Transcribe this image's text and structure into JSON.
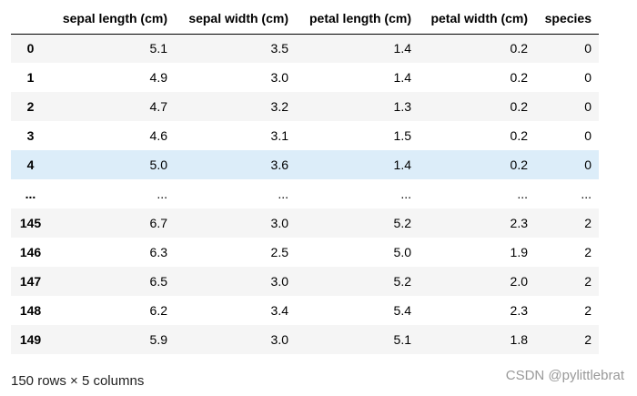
{
  "table": {
    "columns": [
      "",
      "sepal length (cm)",
      "sepal width (cm)",
      "petal length (cm)",
      "petal width (cm)",
      "species"
    ],
    "rows": [
      [
        "0",
        "5.1",
        "3.5",
        "1.4",
        "0.2",
        "0"
      ],
      [
        "1",
        "4.9",
        "3.0",
        "1.4",
        "0.2",
        "0"
      ],
      [
        "2",
        "4.7",
        "3.2",
        "1.3",
        "0.2",
        "0"
      ],
      [
        "3",
        "4.6",
        "3.1",
        "1.5",
        "0.2",
        "0"
      ],
      [
        "4",
        "5.0",
        "3.6",
        "1.4",
        "0.2",
        "0"
      ],
      [
        "...",
        "...",
        "...",
        "...",
        "...",
        "..."
      ],
      [
        "145",
        "6.7",
        "3.0",
        "5.2",
        "2.3",
        "2"
      ],
      [
        "146",
        "6.3",
        "2.5",
        "5.0",
        "1.9",
        "2"
      ],
      [
        "147",
        "6.5",
        "3.0",
        "5.2",
        "2.0",
        "2"
      ],
      [
        "148",
        "6.2",
        "3.4",
        "5.4",
        "2.3",
        "2"
      ],
      [
        "149",
        "5.9",
        "3.0",
        "5.1",
        "1.8",
        "2"
      ]
    ]
  },
  "footer": "150 rows × 5 columns",
  "watermark": "CSDN @pylittlebrat"
}
